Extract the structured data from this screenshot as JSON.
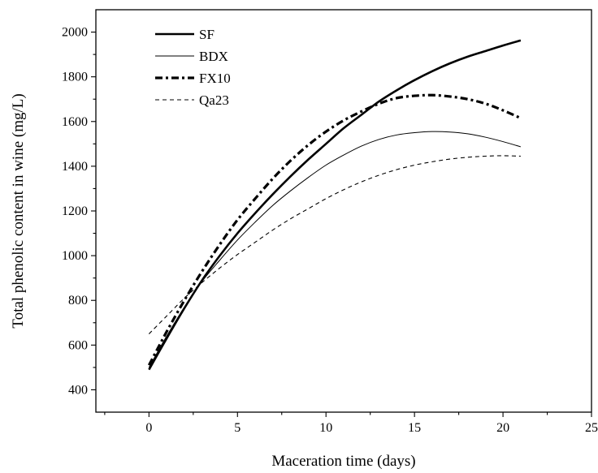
{
  "chart_data": {
    "type": "line",
    "title": "",
    "xlabel": "Maceration time (days)",
    "ylabel": "Total phenolic content in wine (mg/L)",
    "xlim": [
      -3,
      25
    ],
    "ylim": [
      300,
      2100
    ],
    "xticks": [
      0,
      5,
      10,
      15,
      20,
      25
    ],
    "yticks": [
      400,
      600,
      800,
      1000,
      1200,
      1400,
      1600,
      1800,
      2000
    ],
    "grid": false,
    "legend_position": "top-left",
    "x": [
      0,
      1,
      2,
      3,
      4,
      5,
      6,
      7,
      8,
      9,
      10,
      11,
      12,
      13,
      14,
      15,
      16,
      17,
      18,
      19,
      20,
      21
    ],
    "series": [
      {
        "name": "SF",
        "line_style": "solid-thick",
        "values": [
          490,
          630,
          765,
          890,
          1000,
          1100,
          1190,
          1275,
          1355,
          1430,
          1500,
          1570,
          1630,
          1690,
          1740,
          1785,
          1825,
          1860,
          1890,
          1915,
          1940,
          1963
        ]
      },
      {
        "name": "BDX",
        "line_style": "solid-thin",
        "values": [
          500,
          640,
          770,
          885,
          980,
          1070,
          1150,
          1225,
          1290,
          1350,
          1405,
          1450,
          1490,
          1520,
          1540,
          1550,
          1555,
          1553,
          1545,
          1530,
          1510,
          1487
        ]
      },
      {
        "name": "FX10",
        "line_style": "dash-dot-thick",
        "values": [
          510,
          660,
          800,
          930,
          1050,
          1160,
          1255,
          1345,
          1425,
          1495,
          1555,
          1605,
          1645,
          1680,
          1705,
          1715,
          1718,
          1712,
          1700,
          1680,
          1650,
          1615
        ]
      },
      {
        "name": "Qa23",
        "line_style": "dashed-thin",
        "values": [
          650,
          730,
          810,
          880,
          945,
          1005,
          1060,
          1115,
          1165,
          1210,
          1255,
          1295,
          1330,
          1360,
          1385,
          1405,
          1420,
          1432,
          1440,
          1445,
          1447,
          1445
        ]
      }
    ]
  }
}
